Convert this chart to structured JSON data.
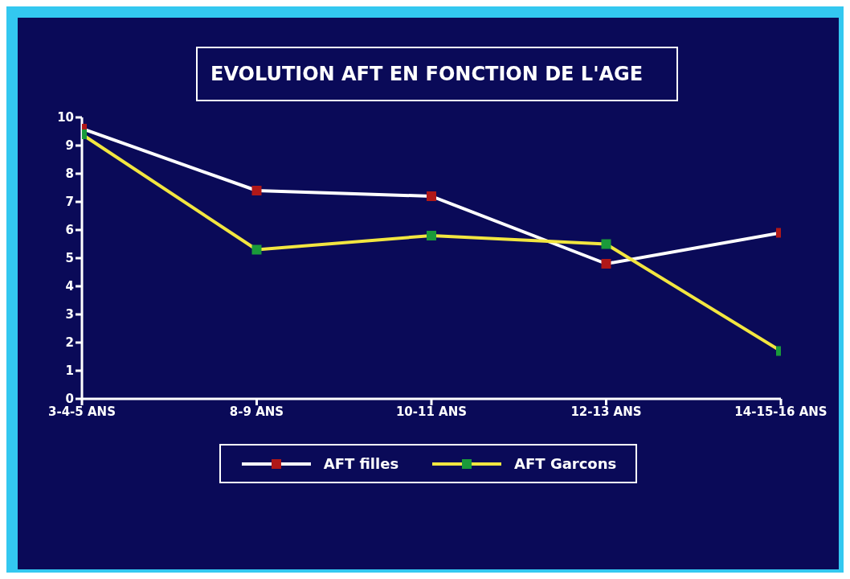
{
  "chart_data": {
    "type": "line",
    "title": "EVOLUTION AFT EN FONCTION DE L'AGE",
    "categories": [
      "3-4-5 ANS",
      "8-9 ANS",
      "10-11 ANS",
      "12-13 ANS",
      "14-15-16 ANS"
    ],
    "series": [
      {
        "name": "AFT filles",
        "color": "#ffffff",
        "values": [
          9.6,
          7.4,
          7.2,
          4.8,
          5.9
        ]
      },
      {
        "name": "AFT Garcons",
        "color": "#f2e640",
        "values": [
          9.4,
          5.3,
          5.8,
          5.5,
          1.7
        ]
      }
    ],
    "ylim": [
      0,
      10
    ],
    "yticks": [
      0,
      1,
      2,
      3,
      4,
      5,
      6,
      7,
      8,
      9,
      10
    ],
    "grid": false,
    "legend": "bottom",
    "marker": "square",
    "line_style": "solid"
  }
}
